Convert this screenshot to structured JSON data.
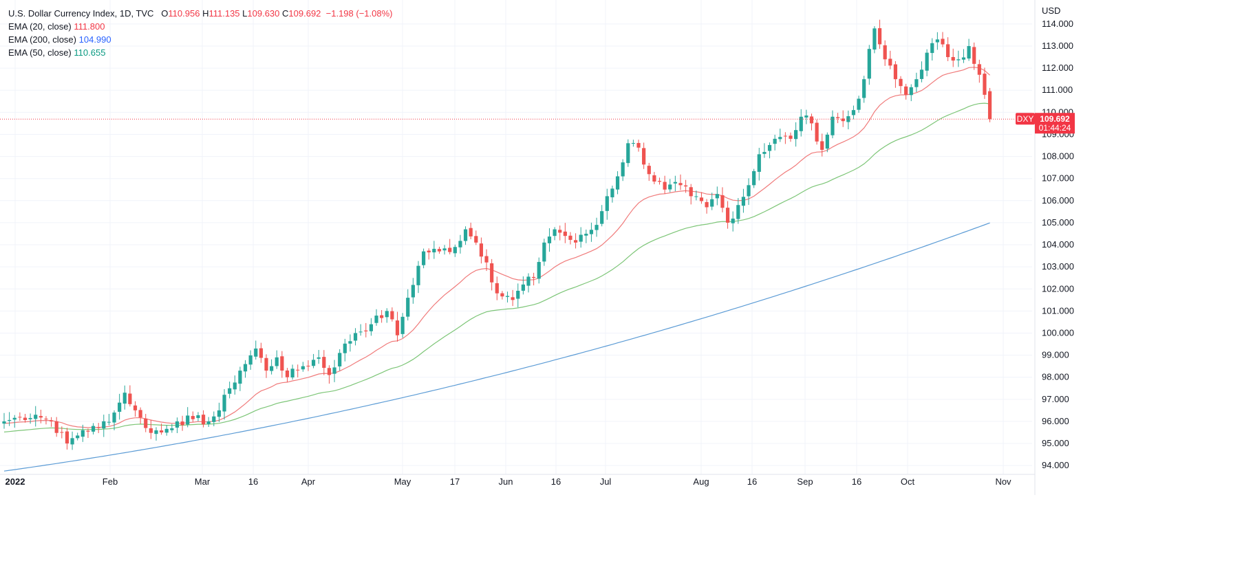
{
  "legend": {
    "symbol_line": "U.S. Dollar Currency Index, 1D, TVC",
    "o_label": "O",
    "o_value": "110.956",
    "h_label": "H",
    "h_value": "111.135",
    "l_label": "L",
    "l_value": "109.630",
    "c_label": "C",
    "c_value": "109.692",
    "change": "−1.198 (−1.08%)",
    "ema20_label": "EMA (20, close)",
    "ema20_value": "111.800",
    "ema200_label": "EMA (200, close)",
    "ema200_value": "104.990",
    "ema50_label": "EMA (50, close)",
    "ema50_value": "110.655"
  },
  "price_badge": {
    "symbol": "DXY",
    "price": "109.692",
    "countdown": "01:44:24"
  },
  "colors": {
    "up": "#26a69a",
    "down": "#ef5350",
    "ema20": "#f07a7a",
    "ema50": "#7cc576",
    "ema200": "#5b9bd5",
    "grid": "#f0f3fa",
    "badge": "#f23645"
  },
  "chart_data": {
    "type": "candlestick",
    "title": "U.S. Dollar Currency Index, 1D, TVC",
    "y_axis_unit": "USD",
    "ylim": [
      93.6,
      114.9
    ],
    "y_ticks": [
      94,
      95,
      96,
      97,
      98,
      99,
      100,
      101,
      102,
      103,
      104,
      105,
      106,
      107,
      108,
      109,
      110,
      111,
      112,
      113,
      114
    ],
    "x_ticks": [
      "2022",
      "Feb",
      "Mar",
      "16",
      "Apr",
      "May",
      "17",
      "Jun",
      "16",
      "Jul",
      "Aug",
      "16",
      "Sep",
      "16",
      "Oct",
      "Nov"
    ],
    "grid": true,
    "anchors": [
      [
        0,
        96.0
      ],
      [
        3,
        96.2
      ],
      [
        6,
        96.3
      ],
      [
        9,
        96.0
      ],
      [
        12,
        95.0
      ],
      [
        15,
        95.6
      ],
      [
        18,
        95.7
      ],
      [
        21,
        96.4
      ],
      [
        23,
        97.3
      ],
      [
        25,
        96.5
      ],
      [
        27,
        95.7
      ],
      [
        30,
        95.5
      ],
      [
        33,
        96.0
      ],
      [
        36,
        96.1
      ],
      [
        39,
        96.0
      ],
      [
        41,
        96.5
      ],
      [
        43,
        97.5
      ],
      [
        45,
        98.3
      ],
      [
        48,
        99.3
      ],
      [
        50,
        98.3
      ],
      [
        52,
        98.9
      ],
      [
        54,
        98.0
      ],
      [
        57,
        98.5
      ],
      [
        60,
        98.9
      ],
      [
        62,
        98.1
      ],
      [
        64,
        99.1
      ],
      [
        67,
        100.0
      ],
      [
        70,
        100.4
      ],
      [
        73,
        101.0
      ],
      [
        75,
        99.9
      ],
      [
        77,
        101.6
      ],
      [
        80,
        103.7
      ],
      [
        83,
        103.7
      ],
      [
        86,
        103.9
      ],
      [
        88,
        104.7
      ],
      [
        90,
        104.1
      ],
      [
        92,
        103.2
      ],
      [
        94,
        101.8
      ],
      [
        97,
        101.5
      ],
      [
        99,
        102.2
      ],
      [
        101,
        102.5
      ],
      [
        103,
        104.1
      ],
      [
        105,
        104.7
      ],
      [
        107,
        104.4
      ],
      [
        109,
        104.1
      ],
      [
        111,
        104.5
      ],
      [
        113,
        104.9
      ],
      [
        115,
        106.2
      ],
      [
        117,
        107.1
      ],
      [
        119,
        108.6
      ],
      [
        121,
        108.4
      ],
      [
        123,
        107.2
      ],
      [
        126,
        106.5
      ],
      [
        129,
        106.7
      ],
      [
        131,
        106.2
      ],
      [
        134,
        105.7
      ],
      [
        136,
        106.3
      ],
      [
        138,
        105.0
      ],
      [
        140,
        105.8
      ],
      [
        142,
        106.7
      ],
      [
        144,
        108.1
      ],
      [
        147,
        108.8
      ],
      [
        150,
        108.8
      ],
      [
        152,
        109.8
      ],
      [
        154,
        109.5
      ],
      [
        156,
        108.3
      ],
      [
        158,
        109.8
      ],
      [
        160,
        109.6
      ],
      [
        162,
        110.1
      ],
      [
        164,
        111.5
      ],
      [
        166,
        113.8
      ],
      [
        168,
        112.4
      ],
      [
        170,
        111.5
      ],
      [
        172,
        110.8
      ],
      [
        174,
        111.5
      ],
      [
        176,
        112.7
      ],
      [
        178,
        113.3
      ],
      [
        180,
        112.5
      ],
      [
        182,
        112.4
      ],
      [
        184,
        113.0
      ],
      [
        186,
        111.7
      ],
      [
        188,
        109.7
      ]
    ],
    "ema20_last": 111.8,
    "ema50_last": 110.655,
    "ema200_last": 104.99,
    "ema200_first": 93.75,
    "last_close": 109.692
  }
}
